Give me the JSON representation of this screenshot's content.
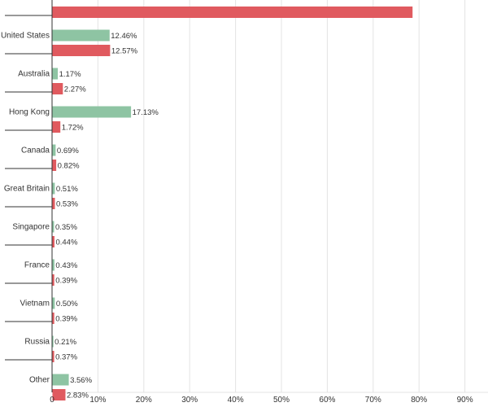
{
  "chart_data": {
    "type": "bar",
    "orientation": "horizontal",
    "categories": [
      "",
      "United States",
      "Australia",
      "Hong Kong",
      "Canada",
      "Great Britain",
      "Singapore",
      "France",
      "Vietnam",
      "Russia",
      "Other"
    ],
    "series": [
      {
        "color": "#8ec4a3",
        "values": [
          null,
          12.46,
          1.17,
          17.13,
          0.69,
          0.51,
          0.35,
          0.43,
          0.5,
          0.21,
          3.56
        ],
        "labels": [
          "",
          "12.46%",
          "1.17%",
          "17.13%",
          "0.69%",
          "0.51%",
          "0.35%",
          "0.43%",
          "0.50%",
          "0.21%",
          "3.56%"
        ]
      },
      {
        "color": "#e05a5f",
        "values": [
          78.5,
          12.57,
          2.27,
          1.72,
          0.82,
          0.53,
          0.44,
          0.39,
          0.39,
          0.37,
          2.83
        ],
        "labels": [
          "",
          "12.57%",
          "2.27%",
          "1.72%",
          "0.82%",
          "0.53%",
          "0.44%",
          "0.39%",
          "0.39%",
          "0.37%",
          "2.83%"
        ]
      }
    ],
    "xlim": [
      0,
      90
    ],
    "xticks": [
      "0",
      "10%",
      "20%",
      "30%",
      "40%",
      "50%",
      "60%",
      "70%",
      "80%",
      "90%"
    ],
    "grid": true,
    "title": "",
    "xlabel": "",
    "ylabel": "",
    "legend": "none"
  }
}
